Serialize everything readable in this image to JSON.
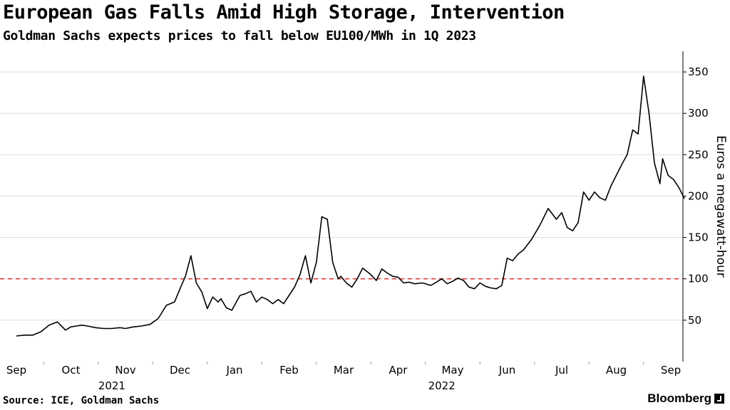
{
  "title": "European Gas Falls Amid High Storage, Intervention",
  "subtitle": "Goldman Sachs expects prices to fall below EU100/MWh in 1Q 2023",
  "source": "Source: ICE, Goldman Sachs",
  "brand": "Bloomberg",
  "colors": {
    "line": "#000000",
    "reference": "#e0403a",
    "grid": "#dddddd"
  },
  "chart_data": {
    "type": "line",
    "title": "European Gas Falls Amid High Storage, Intervention",
    "ylabel": "Euros a megawatt-hour",
    "xlabel": "",
    "ylim": [
      0,
      375
    ],
    "yticks": [
      50,
      100,
      150,
      200,
      250,
      300,
      350
    ],
    "xlim": [
      0,
      12.3
    ],
    "month_labels": [
      "Sep",
      "Oct",
      "Nov",
      "Dec",
      "Jan",
      "Feb",
      "Mar",
      "Apr",
      "May",
      "Jun",
      "Jul",
      "Aug",
      "Sep"
    ],
    "year_labels": [
      {
        "label": "2021",
        "month_pos": 1.75
      },
      {
        "label": "2022",
        "month_pos": 7.8
      }
    ],
    "reference_line": {
      "value": 100,
      "style": "dashed"
    },
    "series": [
      {
        "name": "European gas price",
        "x": [
          0,
          0.15,
          0.3,
          0.45,
          0.6,
          0.75,
          0.9,
          1.0,
          1.1,
          1.2,
          1.3,
          1.45,
          1.6,
          1.75,
          1.9,
          2.0,
          2.15,
          2.3,
          2.45,
          2.6,
          2.75,
          2.9,
          3.0,
          3.1,
          3.2,
          3.3,
          3.4,
          3.5,
          3.6,
          3.7,
          3.75,
          3.85,
          3.95,
          4.1,
          4.2,
          4.3,
          4.4,
          4.5,
          4.6,
          4.7,
          4.8,
          4.9,
          5.0,
          5.1,
          5.2,
          5.3,
          5.4,
          5.5,
          5.6,
          5.7,
          5.8,
          5.85,
          5.9,
          5.95,
          6.05,
          6.15,
          6.25,
          6.35,
          6.5,
          6.6,
          6.7,
          6.8,
          6.9,
          7.0,
          7.1,
          7.2,
          7.3,
          7.45,
          7.6,
          7.7,
          7.8,
          7.9,
          8.0,
          8.1,
          8.2,
          8.3,
          8.4,
          8.5,
          8.6,
          8.7,
          8.8,
          8.9,
          9.0,
          9.1,
          9.2,
          9.3,
          9.45,
          9.6,
          9.75,
          9.9,
          10.0,
          10.1,
          10.2,
          10.3,
          10.4,
          10.5,
          10.6,
          10.7,
          10.8,
          10.9,
          11.0,
          11.1,
          11.2,
          11.3,
          11.4,
          11.5,
          11.6,
          11.7,
          11.8,
          11.85,
          11.95,
          12.05,
          12.15,
          12.25
        ],
        "values": [
          31,
          32,
          32,
          36,
          44,
          48,
          38,
          42,
          43,
          44,
          43,
          41,
          40,
          40,
          41,
          40,
          42,
          43,
          45,
          52,
          68,
          72,
          88,
          103,
          128,
          95,
          84,
          64,
          78,
          72,
          76,
          65,
          62,
          80,
          82,
          85,
          72,
          78,
          75,
          70,
          75,
          70,
          80,
          90,
          105,
          128,
          95,
          120,
          175,
          172,
          120,
          110,
          100,
          103,
          95,
          90,
          100,
          113,
          105,
          98,
          112,
          107,
          103,
          102,
          95,
          96,
          94,
          95,
          92,
          96,
          100,
          94,
          97,
          101,
          98,
          90,
          88,
          95,
          91,
          89,
          88,
          92,
          125,
          122,
          130,
          135,
          148,
          165,
          185,
          172,
          180,
          162,
          158,
          168,
          205,
          195,
          205,
          198,
          195,
          212,
          225,
          238,
          250,
          280,
          275,
          345,
          300,
          240,
          215,
          245,
          225,
          220,
          210,
          197
        ]
      }
    ]
  }
}
